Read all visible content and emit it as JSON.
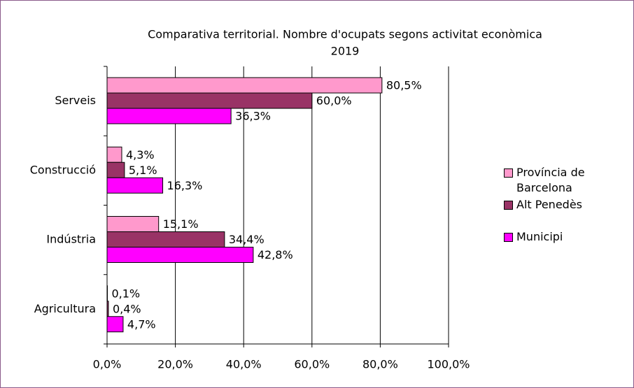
{
  "chart_data": {
    "type": "hbar",
    "title": "Comparativa territorial. Nombre d'ocupats segons activitat econòmica",
    "subtitle": "2019",
    "categories": [
      "Serveis",
      "Construcció",
      "Indústria",
      "Agricultura"
    ],
    "series": [
      {
        "name": "Província de Barcelona",
        "color": "#ff99cc",
        "values": [
          80.5,
          4.3,
          15.1,
          0.1
        ],
        "value_labels": [
          "80,5%",
          "4,3%",
          "15,1%",
          "0,1%"
        ]
      },
      {
        "name": "Alt Penedès",
        "color": "#993366",
        "values": [
          60.0,
          5.1,
          34.4,
          0.4
        ],
        "value_labels": [
          "60,0%",
          "5,1%",
          "34,4%",
          "0,4%"
        ]
      },
      {
        "name": "Municipi",
        "color": "#ff00ff",
        "values": [
          36.3,
          16.3,
          42.8,
          4.7
        ],
        "value_labels": [
          "36,3%",
          "16,3%",
          "42,8%",
          "4,7%"
        ]
      }
    ],
    "xlim": [
      0,
      100
    ],
    "xticks": [
      {
        "value": 0,
        "label": "0,0%"
      },
      {
        "value": 20,
        "label": "20,0%"
      },
      {
        "value": 40,
        "label": "40,0%"
      },
      {
        "value": 60,
        "label": "60,0%"
      },
      {
        "value": 80,
        "label": "80,0%"
      },
      {
        "value": 100,
        "label": "100,0%"
      }
    ],
    "grid": true,
    "legend": "right"
  }
}
